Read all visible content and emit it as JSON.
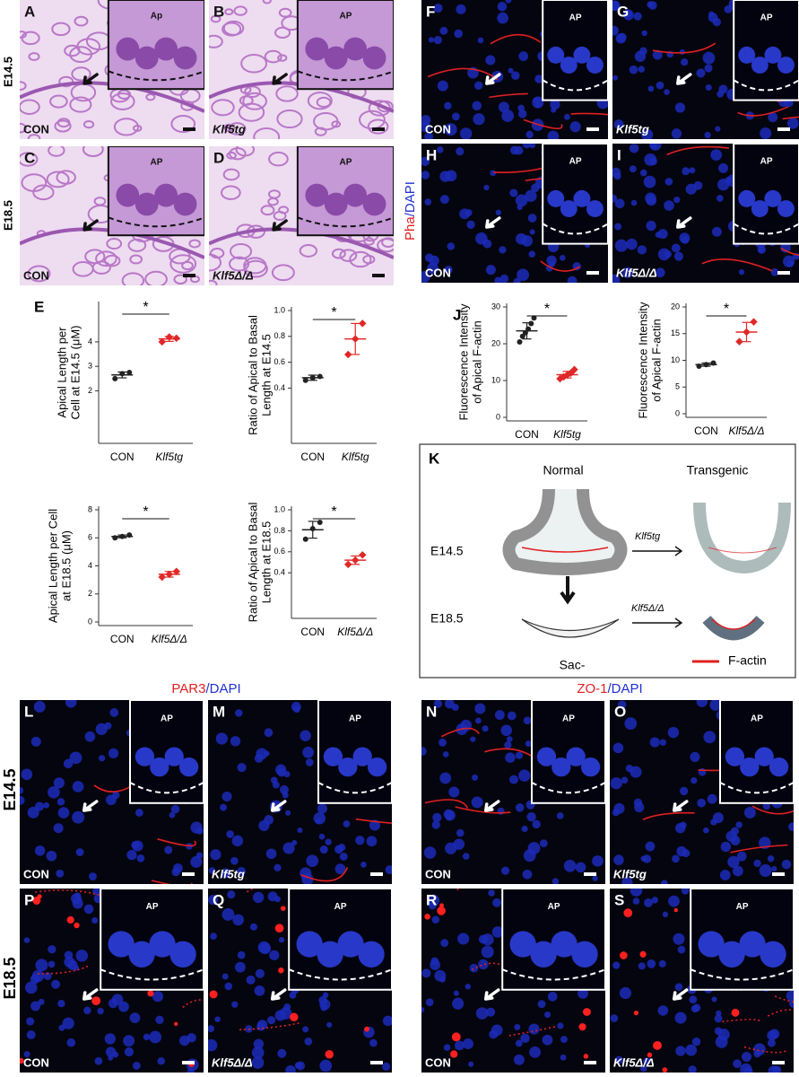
{
  "figure": {
    "he_rows": [
      "E14.5",
      "E18.5"
    ],
    "he_panels": [
      {
        "letter": "A",
        "label": "CON",
        "inset": "Ap"
      },
      {
        "letter": "B",
        "label": "Klf5tg",
        "inset": "AP"
      },
      {
        "letter": "C",
        "label": "CON",
        "inset": "AP"
      },
      {
        "letter": "D",
        "label": "Klf5Δ/Δ",
        "inset": "AP"
      }
    ],
    "fluor_stain": {
      "marker": "Pha",
      "counter": "/DAPI"
    },
    "fluor_panels": [
      {
        "letter": "F",
        "label": "CON",
        "inset": "AP"
      },
      {
        "letter": "G",
        "label": "Klf5tg",
        "inset": "AP"
      },
      {
        "letter": "H",
        "label": "CON",
        "inset": "AP"
      },
      {
        "letter": "I",
        "label": "Klf5Δ/Δ",
        "inset": "AP"
      }
    ],
    "par3_stain": {
      "marker": "PAR3",
      "counter": "/DAPI"
    },
    "zo1_stain": {
      "marker": "ZO-1",
      "counter": "/DAPI"
    },
    "bottom_rows": [
      "E14.5",
      "E18.5"
    ],
    "bottom_panels": [
      {
        "letter": "L",
        "label": "CON",
        "inset": "AP"
      },
      {
        "letter": "M",
        "label": "Klf5tg",
        "inset": "AP"
      },
      {
        "letter": "N",
        "label": "CON",
        "inset": "AP"
      },
      {
        "letter": "O",
        "label": "Klf5tg",
        "inset": "AP"
      },
      {
        "letter": "P",
        "label": "CON",
        "inset": "AP"
      },
      {
        "letter": "Q",
        "label": "Klf5Δ/Δ",
        "inset": "AP"
      },
      {
        "letter": "R",
        "label": "CON",
        "inset": "AP"
      },
      {
        "letter": "S",
        "label": "Klf5Δ/Δ",
        "inset": "AP"
      }
    ],
    "chart_letters": [
      "E",
      "J"
    ]
  },
  "diagram": {
    "letter": "K",
    "normal": "Normal",
    "transgenic": "Transgenic",
    "row1": "E14.5",
    "row2": "E18.5",
    "arrow1": "Klf5tg",
    "arrow2": "Klf5Δ/Δ",
    "sac": "Sac-",
    "legend": "F-actin"
  },
  "chart_data": [
    {
      "type": "dot",
      "ylabel": [
        "Apical Length per",
        "Cell at E14.5 (μM)"
      ],
      "categories": [
        "CON",
        "Klf5tg"
      ],
      "colors": [
        "#222222",
        "#e02828"
      ],
      "values": [
        [
          2.5,
          2.7,
          2.75
        ],
        [
          4.0,
          4.2,
          4.15
        ]
      ],
      "means": [
        2.65,
        4.12
      ],
      "errors": [
        0.12,
        0.1
      ],
      "annotation": "*",
      "ylim": [
        0,
        5.5
      ],
      "yticks": [
        2,
        3,
        4
      ]
    },
    {
      "type": "dot",
      "ylabel": [
        "Ratio of Apical to Basal",
        "Length at E14.5"
      ],
      "categories": [
        "CON",
        "Klf5tg"
      ],
      "colors": [
        "#222222",
        "#e02828"
      ],
      "values": [
        [
          0.46,
          0.48,
          0.49
        ],
        [
          0.66,
          0.78,
          0.9
        ]
      ],
      "means": [
        0.48,
        0.78
      ],
      "errors": [
        0.02,
        0.12
      ],
      "annotation": "*",
      "ylim": [
        0,
        1.0
      ],
      "yticks": [
        0.4,
        0.6,
        0.8,
        {
          "value": 1,
          "label": "1.0"
        }
      ]
    },
    {
      "type": "dot",
      "ylabel": [
        "Apical Length per Cell",
        "at E18.5 (μM)"
      ],
      "categories": [
        "CON",
        "Klf5Δ/Δ"
      ],
      "colors": [
        "#222222",
        "#e02828"
      ],
      "values": [
        [
          6.0,
          6.1,
          6.2
        ],
        [
          3.2,
          3.4,
          3.6
        ]
      ],
      "means": [
        6.1,
        3.4
      ],
      "errors": [
        0.1,
        0.2
      ],
      "annotation": "*",
      "ylim": [
        0,
        8
      ],
      "yticks": [
        0,
        2,
        4,
        6,
        8
      ]
    },
    {
      "type": "dot",
      "ylabel": [
        "Ratio of Apical to Basal",
        "Length at E18.5"
      ],
      "categories": [
        "CON",
        "Klf5Δ/Δ"
      ],
      "colors": [
        "#222222",
        "#e02828"
      ],
      "values": [
        [
          0.72,
          0.82,
          0.88
        ],
        [
          0.48,
          0.52,
          0.57
        ]
      ],
      "means": [
        0.81,
        0.52
      ],
      "errors": [
        0.08,
        0.04
      ],
      "annotation": "*",
      "ylim": [
        0,
        1
      ],
      "yticks": [
        0.4,
        0.6,
        0.8,
        {
          "value": 1,
          "label": "1.0"
        }
      ]
    },
    {
      "type": "dot",
      "ylabel": [
        "Fluorescence Intensity",
        "of Apical F-actin"
      ],
      "categories": [
        "CON",
        "Klf5tg"
      ],
      "colors": [
        "#222222",
        "#e02828"
      ],
      "values": [
        [
          20.5,
          22,
          23,
          24,
          25.5,
          27
        ],
        [
          10.5,
          11,
          11.5,
          12,
          13
        ]
      ],
      "means": [
        23.5,
        11.6
      ],
      "errors": [
        2.2,
        0.9
      ],
      "annotation": "*",
      "ylim": [
        0,
        30
      ],
      "yticks": [
        0,
        10,
        20,
        30
      ]
    },
    {
      "type": "dot",
      "ylabel": [
        "Fluorescence Intensity",
        "of Apical F-actin"
      ],
      "categories": [
        "CON",
        "Klf5Δ/Δ"
      ],
      "colors": [
        "#222222",
        "#e02828"
      ],
      "values": [
        [
          8.9,
          9.2,
          9.5
        ],
        [
          13.5,
          15.3,
          17.2
        ]
      ],
      "means": [
        9.2,
        15.3
      ],
      "errors": [
        0.3,
        1.8
      ],
      "annotation": "*",
      "ylim": [
        0,
        20
      ],
      "yticks": [
        0,
        5,
        10,
        15,
        20
      ]
    }
  ]
}
